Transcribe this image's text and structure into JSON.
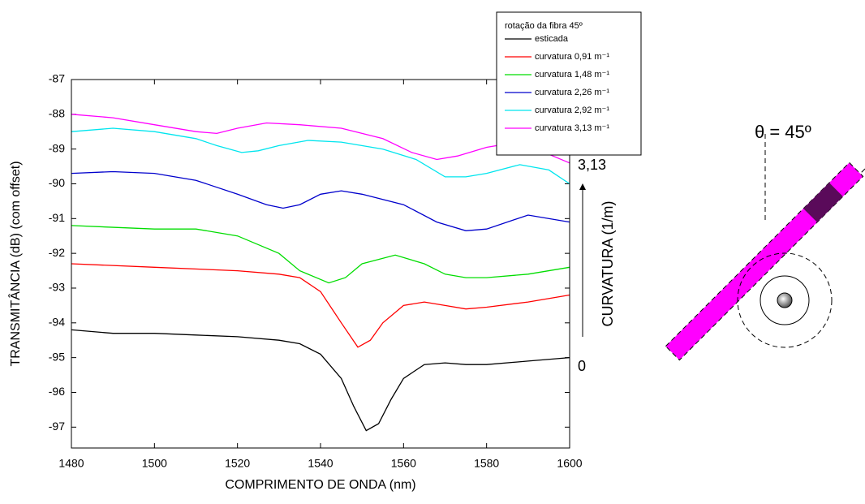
{
  "chart_data": {
    "type": "line",
    "xlabel": "COMPRIMENTO DE ONDA (nm)",
    "ylabel": "TRANSMITÂNCIA (dB) (com offset)",
    "legend_title": "rotação da fibra 45º",
    "xlim": [
      1480,
      1600
    ],
    "ylim": [
      -97.6,
      -87
    ],
    "xticks": [
      1480,
      1500,
      1520,
      1540,
      1560,
      1580,
      1600
    ],
    "yticks": [
      -87,
      -88,
      -89,
      -90,
      -91,
      -92,
      -93,
      -94,
      -95,
      -96,
      -97
    ],
    "series": [
      {
        "name": "esticada",
        "color": "#000000",
        "x": [
          1480,
          1490,
          1500,
          1510,
          1520,
          1530,
          1535,
          1540,
          1545,
          1548,
          1551,
          1554,
          1557,
          1560,
          1565,
          1570,
          1575,
          1580,
          1590,
          1600
        ],
        "values": [
          -94.2,
          -94.3,
          -94.3,
          -94.35,
          -94.4,
          -94.5,
          -94.6,
          -94.9,
          -95.6,
          -96.4,
          -97.1,
          -96.9,
          -96.2,
          -95.6,
          -95.2,
          -95.15,
          -95.2,
          -95.2,
          -95.1,
          -95.0
        ]
      },
      {
        "name": "curvatura 0,91 m⁻¹",
        "color": "#ff0000",
        "x": [
          1480,
          1500,
          1520,
          1530,
          1535,
          1540,
          1545,
          1549,
          1552,
          1555,
          1560,
          1565,
          1570,
          1575,
          1580,
          1590,
          1600
        ],
        "values": [
          -92.3,
          -92.4,
          -92.5,
          -92.6,
          -92.7,
          -93.1,
          -94.0,
          -94.7,
          -94.5,
          -94.0,
          -93.5,
          -93.4,
          -93.5,
          -93.6,
          -93.55,
          -93.4,
          -93.2
        ]
      },
      {
        "name": "curvatura 1,48 m⁻¹",
        "color": "#00dd00",
        "x": [
          1480,
          1500,
          1510,
          1520,
          1530,
          1535,
          1542,
          1546,
          1550,
          1558,
          1565,
          1570,
          1575,
          1580,
          1590,
          1600
        ],
        "values": [
          -91.2,
          -91.3,
          -91.3,
          -91.5,
          -92.0,
          -92.5,
          -92.85,
          -92.7,
          -92.3,
          -92.05,
          -92.3,
          -92.6,
          -92.7,
          -92.7,
          -92.6,
          -92.4
        ]
      },
      {
        "name": "curvatura 2,26 m⁻¹",
        "color": "#0000cc",
        "x": [
          1480,
          1490,
          1500,
          1510,
          1520,
          1527,
          1531,
          1535,
          1540,
          1545,
          1550,
          1560,
          1568,
          1575,
          1580,
          1590,
          1600
        ],
        "values": [
          -89.7,
          -89.65,
          -89.7,
          -89.9,
          -90.3,
          -90.6,
          -90.7,
          -90.6,
          -90.3,
          -90.2,
          -90.3,
          -90.6,
          -91.1,
          -91.35,
          -91.3,
          -90.9,
          -91.1
        ]
      },
      {
        "name": "curvatura 2,92 m⁻¹",
        "color": "#00e5ee",
        "x": [
          1480,
          1490,
          1500,
          1510,
          1515,
          1521,
          1525,
          1530,
          1537,
          1545,
          1555,
          1563,
          1570,
          1575,
          1580,
          1588,
          1595,
          1600
        ],
        "values": [
          -88.5,
          -88.4,
          -88.5,
          -88.7,
          -88.9,
          -89.1,
          -89.05,
          -88.9,
          -88.75,
          -88.8,
          -89.0,
          -89.3,
          -89.8,
          -89.8,
          -89.7,
          -89.45,
          -89.6,
          -90.0
        ]
      },
      {
        "name": "curvatura 3,13 m⁻¹",
        "color": "#ff00ff",
        "x": [
          1480,
          1490,
          1500,
          1510,
          1515,
          1520,
          1527,
          1535,
          1545,
          1555,
          1562,
          1568,
          1573,
          1580,
          1585,
          1590,
          1600
        ],
        "values": [
          -88.0,
          -88.1,
          -88.3,
          -88.5,
          -88.55,
          -88.4,
          -88.25,
          -88.3,
          -88.4,
          -88.7,
          -89.1,
          -89.3,
          -89.2,
          -88.95,
          -88.85,
          -88.9,
          -89.4
        ]
      }
    ],
    "annotations": [
      "3,13",
      "0",
      "CURVATURA (1/m)",
      "θ = 45º"
    ]
  }
}
